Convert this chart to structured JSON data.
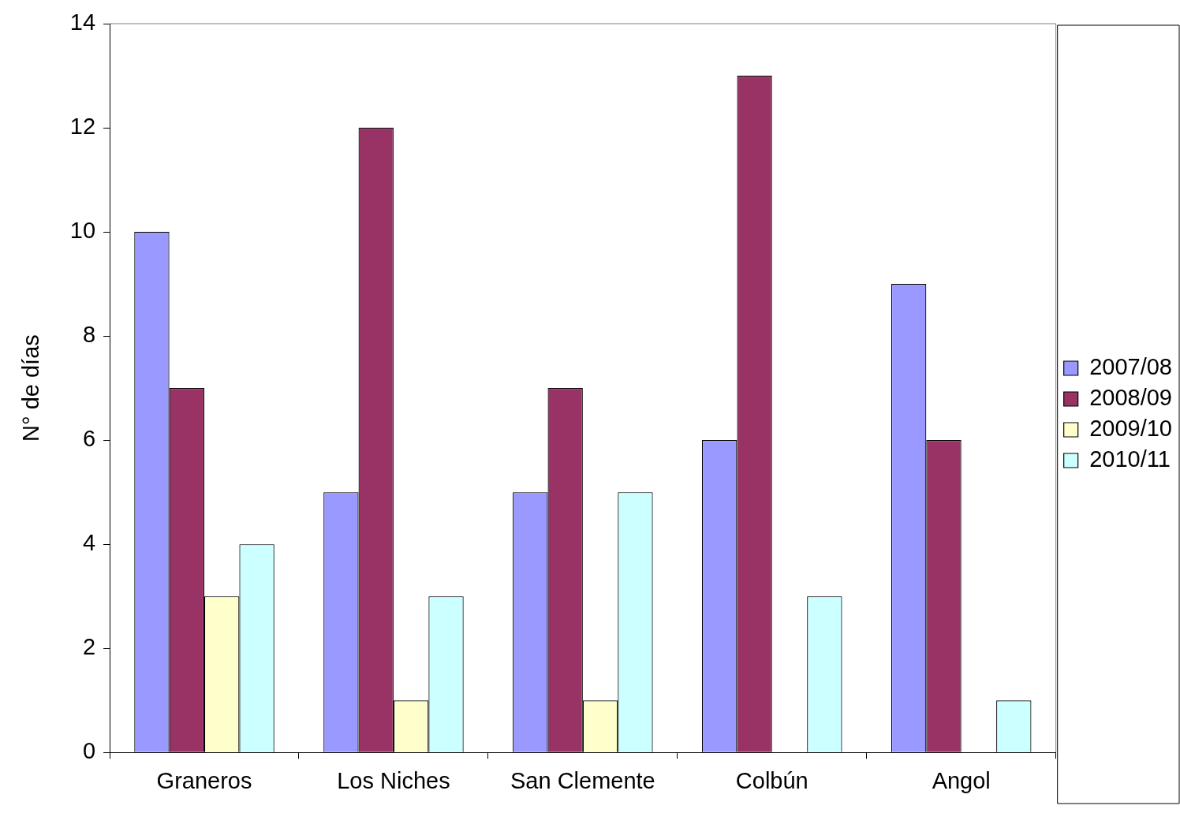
{
  "chart_data": {
    "type": "bar",
    "ylabel": "N° de días",
    "categories": [
      "Graneros",
      "Los Niches",
      "San Clemente",
      "Colbún",
      "Angol"
    ],
    "series": [
      {
        "name": "2007/08",
        "color": "#9999ff",
        "values": [
          10,
          5,
          5,
          6,
          9
        ]
      },
      {
        "name": "2008/09",
        "color": "#993366",
        "values": [
          7,
          12,
          7,
          13,
          6
        ]
      },
      {
        "name": "2009/10",
        "color": "#ffffcc",
        "values": [
          3,
          1,
          1,
          null,
          null
        ]
      },
      {
        "name": "2010/11",
        "color": "#ccffff",
        "values": [
          4,
          3,
          5,
          3,
          1
        ]
      }
    ],
    "ylim": [
      0,
      14
    ],
    "yticks": [
      0,
      2,
      4,
      6,
      8,
      10,
      12,
      14
    ],
    "grid": false,
    "legend": "right"
  }
}
